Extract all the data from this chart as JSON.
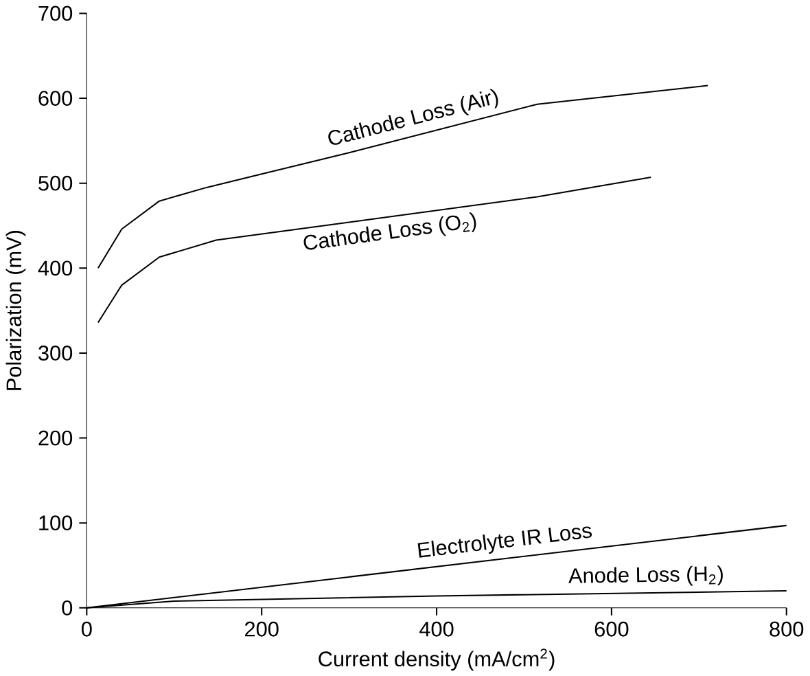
{
  "chart_data": {
    "type": "line",
    "xlabel": "Current density (mA/cm$^{2}$)",
    "ylabel": "Polarization (mV)",
    "xlim": [
      0,
      800
    ],
    "ylim": [
      0,
      700
    ],
    "xticks": [
      0,
      200,
      400,
      600,
      800
    ],
    "yticks": [
      0,
      100,
      200,
      300,
      400,
      500,
      600,
      700
    ],
    "grid": false,
    "legend": false,
    "marker": "none",
    "line_style": "solid",
    "series": [
      {
        "name": "Cathode Loss (Air)",
        "color": "#000000",
        "x": [
          13,
          40,
          83,
          137,
          300,
          515,
          710
        ],
        "values": [
          400,
          446,
          479,
          495,
          536,
          593,
          615
        ]
      },
      {
        "name": "Cathode Loss (O$_{2}$)",
        "color": "#000000",
        "x": [
          13,
          40,
          83,
          148,
          300,
          515,
          645
        ],
        "values": [
          336,
          380,
          413,
          433,
          454,
          484,
          507
        ]
      },
      {
        "name": "Electrolyte IR Loss",
        "color": "#000000",
        "x": [
          0,
          800
        ],
        "values": [
          0,
          97
        ]
      },
      {
        "name": "Anode Loss (H$_{2}$)",
        "color": "#000000",
        "x": [
          0,
          100,
          400,
          800
        ],
        "values": [
          0,
          8,
          14,
          20
        ]
      }
    ]
  }
}
